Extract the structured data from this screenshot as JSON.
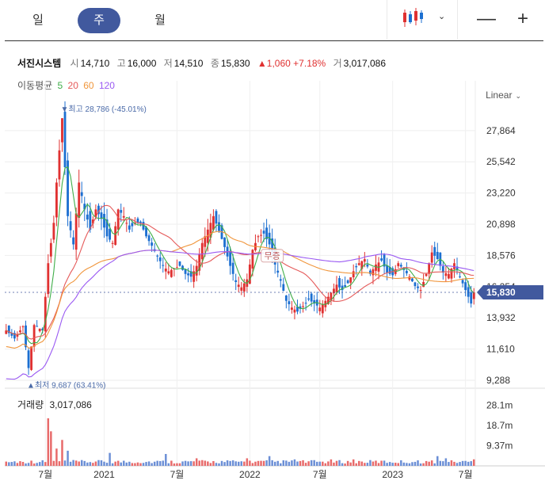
{
  "tabs": [
    "일",
    "주",
    "월"
  ],
  "active_tab": "주",
  "controls": {
    "zoom_out": "—",
    "zoom_in": "+",
    "scale": "Linear"
  },
  "stock": {
    "name": "서진시스템",
    "open_label": "시",
    "open": "14,710",
    "high_label": "고",
    "high": "16,000",
    "low_label": "저",
    "low": "14,510",
    "close_label": "종",
    "close": "15,830",
    "change": "▲1,060",
    "change_pct": "+7.18%",
    "volume_label": "거",
    "volume": "3,017,086"
  },
  "ma_legend": {
    "title": "이동평균",
    "items": [
      {
        "label": "5",
        "color": "#3fae49"
      },
      {
        "label": "20",
        "color": "#e55a5a"
      },
      {
        "label": "60",
        "color": "#f0963c"
      },
      {
        "label": "120",
        "color": "#9a59f2"
      }
    ]
  },
  "colors": {
    "up": "#e03131",
    "down": "#1c6fd1",
    "accent": "#41599e",
    "volume": "#6b8fd6"
  },
  "chart_data": {
    "type": "candlestick",
    "y_ticks": [
      9288,
      11610,
      13932,
      16254,
      18576,
      20898,
      23220,
      25542,
      27864
    ],
    "y_tick_labels": [
      "9,288",
      "11,610",
      "13,932",
      "16,254",
      "18,576",
      "20,898",
      "23,220",
      "25,542",
      "27,864"
    ],
    "ylim": [
      8700,
      29800
    ],
    "x_labels": [
      "7월",
      "2021",
      "7월",
      "2022",
      "7월",
      "2023",
      "7월"
    ],
    "x_label_index": [
      14,
      35,
      61,
      87,
      112,
      138,
      164
    ],
    "current_price": "15,830",
    "max_annotation": "최고 28,786 (-45.01%)",
    "min_annotation": "최저 9,687 (63.41%)",
    "max_value": 28786,
    "max_index": 20,
    "min_value": 9687,
    "min_index": 8,
    "watermark": "무증",
    "price_path": [
      [
        0,
        13000
      ],
      [
        3,
        12400
      ],
      [
        6,
        13300
      ],
      [
        8,
        10200
      ],
      [
        10,
        13400
      ],
      [
        13,
        13000
      ],
      [
        15,
        18000
      ],
      [
        17,
        21000
      ],
      [
        18,
        24000
      ],
      [
        20,
        28786
      ],
      [
        22,
        21500
      ],
      [
        24,
        19400
      ],
      [
        26,
        24000
      ],
      [
        28,
        22000
      ],
      [
        30,
        20500
      ],
      [
        32,
        22000
      ],
      [
        34,
        21300
      ],
      [
        36,
        20000
      ],
      [
        38,
        19500
      ],
      [
        40,
        22000
      ],
      [
        42,
        21500
      ],
      [
        44,
        20500
      ],
      [
        46,
        21000
      ],
      [
        48,
        21000
      ],
      [
        50,
        20000
      ],
      [
        52,
        19300
      ],
      [
        54,
        18500
      ],
      [
        56,
        17800
      ],
      [
        58,
        17400
      ],
      [
        60,
        17600
      ],
      [
        62,
        17800
      ],
      [
        64,
        17200
      ],
      [
        66,
        17000
      ],
      [
        68,
        17800
      ],
      [
        70,
        19500
      ],
      [
        72,
        20500
      ],
      [
        74,
        21500
      ],
      [
        76,
        20400
      ],
      [
        78,
        19200
      ],
      [
        80,
        17800
      ],
      [
        82,
        16600
      ],
      [
        84,
        16200
      ],
      [
        86,
        16800
      ],
      [
        88,
        19000
      ],
      [
        90,
        20000
      ],
      [
        92,
        20200
      ],
      [
        94,
        19400
      ],
      [
        96,
        17900
      ],
      [
        98,
        16700
      ],
      [
        100,
        15200
      ],
      [
        102,
        14700
      ],
      [
        104,
        14400
      ],
      [
        106,
        14800
      ],
      [
        108,
        15300
      ],
      [
        110,
        15000
      ],
      [
        112,
        14700
      ],
      [
        114,
        15200
      ],
      [
        116,
        15800
      ],
      [
        118,
        16400
      ],
      [
        120,
        16000
      ],
      [
        122,
        16500
      ],
      [
        124,
        17400
      ],
      [
        126,
        18000
      ],
      [
        128,
        18300
      ],
      [
        130,
        17200
      ],
      [
        132,
        17900
      ],
      [
        134,
        18200
      ],
      [
        136,
        17300
      ],
      [
        138,
        17100
      ],
      [
        140,
        18000
      ],
      [
        142,
        17500
      ],
      [
        144,
        17000
      ],
      [
        146,
        16300
      ],
      [
        148,
        16000
      ],
      [
        150,
        17200
      ],
      [
        152,
        18800
      ],
      [
        154,
        18300
      ],
      [
        156,
        17300
      ],
      [
        158,
        17200
      ],
      [
        160,
        18000
      ],
      [
        162,
        17000
      ],
      [
        164,
        16000
      ],
      [
        166,
        15000
      ],
      [
        167,
        15830
      ]
    ],
    "volume_y_ticks": [
      "28.1m",
      "18.7m",
      "9.37m"
    ],
    "volume_ylim": [
      0,
      33000000
    ],
    "volume_spikes": [
      [
        15,
        22000000
      ],
      [
        16,
        16000000
      ],
      [
        20,
        12000000
      ],
      [
        18,
        8000000
      ],
      [
        22,
        7000000
      ],
      [
        37,
        6000000
      ],
      [
        57,
        5500000
      ],
      [
        68,
        3500000
      ],
      [
        86,
        3500000
      ],
      [
        94,
        4500000
      ],
      [
        103,
        3000000
      ],
      [
        116,
        3000000
      ],
      [
        124,
        3000000
      ],
      [
        154,
        4500000
      ],
      [
        157,
        3500000
      ],
      [
        167,
        3017086
      ]
    ],
    "volume_base": 1800000,
    "volume_label": "거래량",
    "volume_current": "3,017,086"
  }
}
